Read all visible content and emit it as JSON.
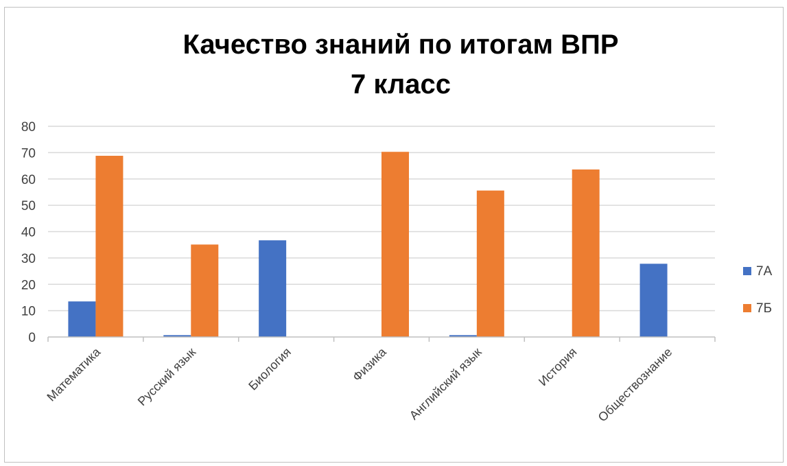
{
  "chart_data": {
    "type": "bar",
    "title": "Качество знаний по итогам ВПР",
    "subtitle": "7 класс",
    "categories": [
      "Математика",
      "Русский язык",
      "Биология",
      "Физика",
      "Английский язык",
      "История",
      "Обществознание"
    ],
    "series": [
      {
        "name": "7А",
        "color": "#4472C4",
        "values": [
          13.5,
          0.7,
          36.7,
          0,
          0.7,
          0,
          27.8
        ]
      },
      {
        "name": "7Б",
        "color": "#ED7D31",
        "values": [
          68.8,
          35.1,
          0,
          70.3,
          55.6,
          63.6,
          0
        ]
      }
    ],
    "ylim": [
      0,
      80
    ],
    "yticks": [
      0,
      10,
      20,
      30,
      40,
      50,
      60,
      70,
      80
    ],
    "xlabel": "",
    "ylabel": "",
    "grid": true,
    "legend": "right"
  }
}
